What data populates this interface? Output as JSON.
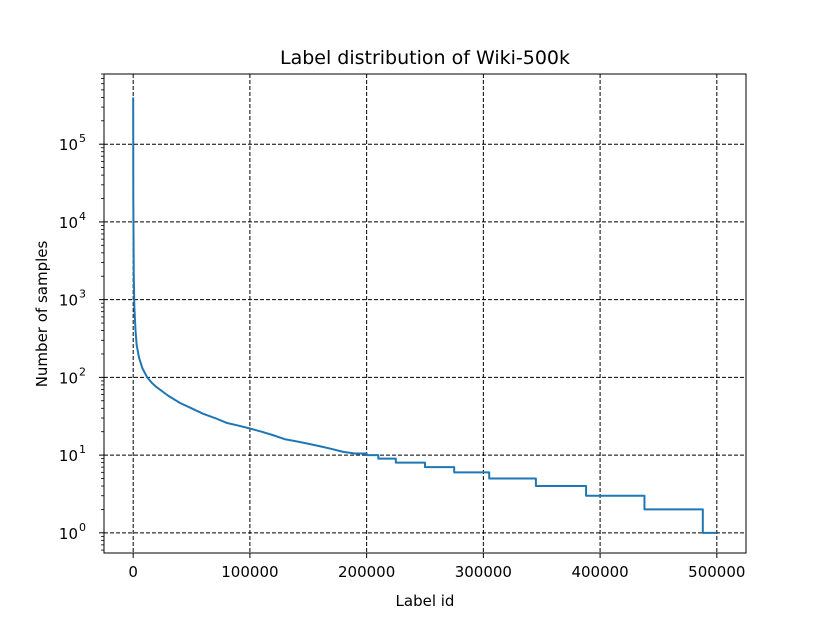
{
  "chart_data": {
    "type": "line",
    "title": "Label distribution of Wiki-500k",
    "xlabel": "Label id",
    "ylabel": "Number of samples",
    "xlim": [
      -25000,
      525000
    ],
    "ylim": [
      0.55,
      800000
    ],
    "yscale": "log",
    "grid": true,
    "grid_style": "dashed",
    "line_color": "#1f77b4",
    "x_ticks": [
      0,
      100000,
      200000,
      300000,
      400000,
      500000
    ],
    "x_tick_labels": [
      "0",
      "100000",
      "200000",
      "300000",
      "400000",
      "500000"
    ],
    "y_ticks": [
      1,
      10,
      100,
      1000,
      10000,
      100000
    ],
    "y_tick_labels": [
      {
        "base": "10",
        "exp": "0"
      },
      {
        "base": "10",
        "exp": "1"
      },
      {
        "base": "10",
        "exp": "2"
      },
      {
        "base": "10",
        "exp": "3"
      },
      {
        "base": "10",
        "exp": "4"
      },
      {
        "base": "10",
        "exp": "5"
      }
    ],
    "series": [
      {
        "x": [
          0,
          100,
          500,
          1000,
          2000,
          3000,
          5000,
          8000,
          12000,
          16000,
          20000,
          30000,
          40000,
          50000,
          60000,
          70000,
          80000,
          90000,
          100000,
          110000,
          120000,
          130000,
          140000,
          150000,
          160000,
          170000,
          180000,
          190000,
          200000,
          210000,
          225000,
          250000,
          275000,
          305000,
          345000,
          388000,
          438000,
          488000,
          500000
        ],
        "y": [
          400000,
          20000,
          2000,
          800,
          400,
          260,
          180,
          130,
          100,
          85,
          75,
          58,
          47,
          40,
          34,
          30,
          26,
          24,
          22,
          20,
          18,
          16,
          15,
          14,
          13,
          12,
          11,
          10.5,
          10,
          9,
          8,
          7,
          6,
          5,
          4,
          3,
          2,
          1,
          1
        ]
      }
    ]
  }
}
